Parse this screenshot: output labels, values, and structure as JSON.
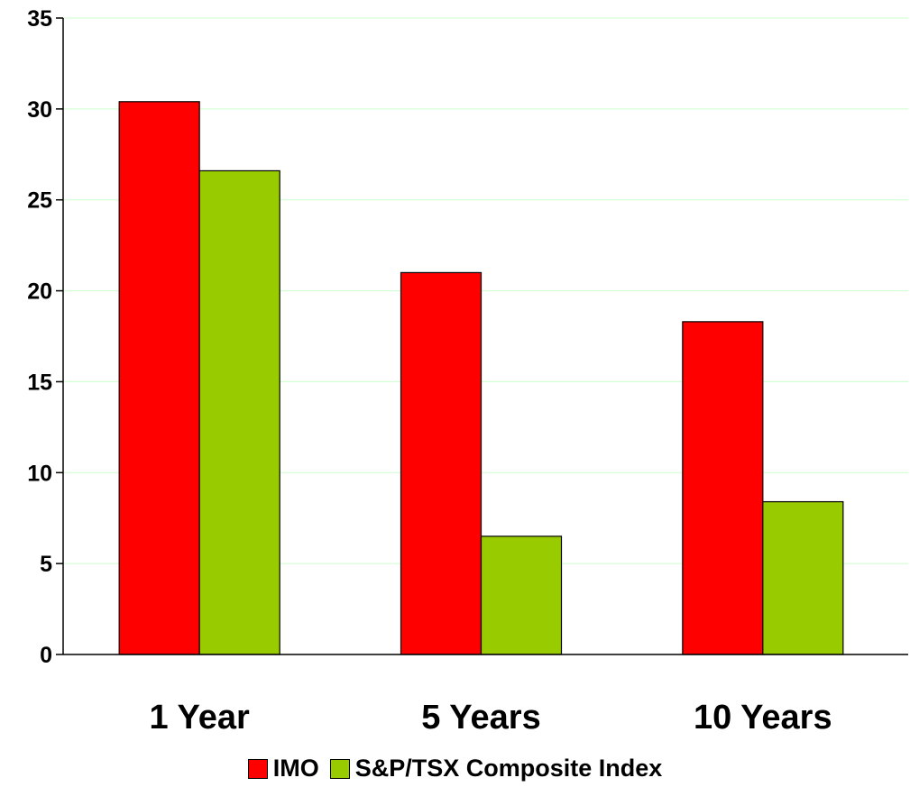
{
  "chart_data": {
    "type": "bar",
    "categories": [
      "1 Year",
      "5 Years",
      "10 Years"
    ],
    "series": [
      {
        "name": "IMO",
        "values": [
          30.4,
          21.0,
          18.3
        ],
        "color": "#ff0000"
      },
      {
        "name": "S&P/TSX Composite Index",
        "values": [
          26.6,
          6.5,
          8.4
        ],
        "color": "#99cc00"
      }
    ],
    "ylim": [
      0,
      35
    ],
    "yticks": [
      "0",
      "5",
      "10",
      "15",
      "20",
      "25",
      "30",
      "35"
    ],
    "grid": true,
    "grid_color": "#ccffcc",
    "legend_position": "bottom",
    "title": "",
    "xlabel": "",
    "ylabel": ""
  }
}
